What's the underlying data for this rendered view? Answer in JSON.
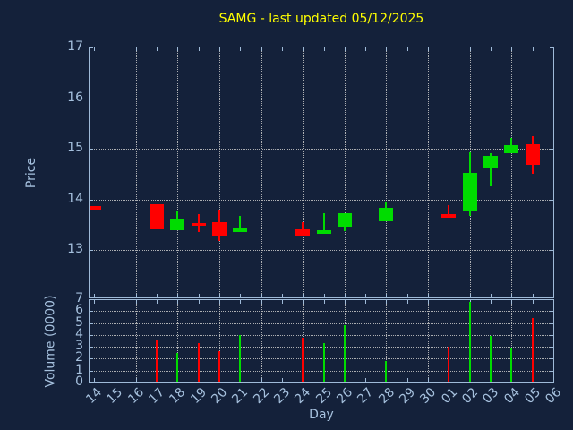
{
  "chart_data": {
    "type": "candlestick_with_volume",
    "title": "SAMG - last updated 05/12/2025",
    "xlabel": "Day",
    "price_ylabel": "Price",
    "volume_ylabel": "Volume (0000)",
    "x_categories": [
      "14",
      "15",
      "16",
      "17",
      "18",
      "19",
      "20",
      "21",
      "22",
      "23",
      "24",
      "25",
      "26",
      "27",
      "28",
      "29",
      "30",
      "01",
      "02",
      "03",
      "04",
      "05",
      "06"
    ],
    "price_yticks": [
      13,
      14,
      15,
      16,
      17
    ],
    "price_ylim": [
      12,
      17
    ],
    "volume_yticks": [
      0,
      1,
      2,
      3,
      4,
      5,
      6,
      7
    ],
    "volume_ylim": [
      0,
      7
    ],
    "grid": true,
    "grid_vertical_days": [
      "16",
      "18",
      "20",
      "22",
      "24",
      "26",
      "28",
      "30",
      "02",
      "04"
    ],
    "colors": {
      "background": "#14213a",
      "frame": "#9fbad8",
      "tick_text": "#a6c1de",
      "title_text": "#ffff00",
      "grid": "#c9c9c9",
      "up": "#00dc00",
      "down": "#ff0000"
    },
    "candles": [
      {
        "day": "14",
        "open": 13.87,
        "high": 13.87,
        "low": 13.8,
        "close": 13.8,
        "volume": 0
      },
      {
        "day": "17",
        "open": 13.9,
        "high": 13.9,
        "low": 13.42,
        "close": 13.42,
        "volume": 3.6
      },
      {
        "day": "18",
        "open": 13.4,
        "high": 13.79,
        "low": 13.4,
        "close": 13.6,
        "volume": 2.45
      },
      {
        "day": "19",
        "open": 13.53,
        "high": 13.71,
        "low": 13.36,
        "close": 13.49,
        "volume": 3.35
      },
      {
        "day": "20",
        "open": 13.55,
        "high": 13.81,
        "low": 13.18,
        "close": 13.27,
        "volume": 2.65
      },
      {
        "day": "21",
        "open": 13.36,
        "high": 13.68,
        "low": 13.36,
        "close": 13.43,
        "volume": 4.0
      },
      {
        "day": "24",
        "open": 13.42,
        "high": 13.56,
        "low": 13.29,
        "close": 13.29,
        "volume": 3.8
      },
      {
        "day": "25",
        "open": 13.33,
        "high": 13.74,
        "low": 13.33,
        "close": 13.4,
        "volume": 3.35
      },
      {
        "day": "26",
        "open": 13.47,
        "high": 13.74,
        "low": 13.38,
        "close": 13.74,
        "volume": 4.85
      },
      {
        "day": "28",
        "open": 13.58,
        "high": 13.95,
        "low": 13.58,
        "close": 13.84,
        "volume": 1.8
      },
      {
        "day": "01",
        "open": 13.71,
        "high": 13.89,
        "low": 13.64,
        "close": 13.64,
        "volume": 3.0
      },
      {
        "day": "02",
        "open": 13.77,
        "high": 14.94,
        "low": 13.68,
        "close": 14.52,
        "volume": 6.8
      },
      {
        "day": "03",
        "open": 14.64,
        "high": 14.92,
        "low": 14.27,
        "close": 14.86,
        "volume": 3.9
      },
      {
        "day": "04",
        "open": 14.92,
        "high": 15.21,
        "low": 14.92,
        "close": 15.08,
        "volume": 2.85
      },
      {
        "day": "05",
        "open": 15.1,
        "high": 15.25,
        "low": 14.51,
        "close": 14.68,
        "volume": 5.4
      }
    ]
  }
}
